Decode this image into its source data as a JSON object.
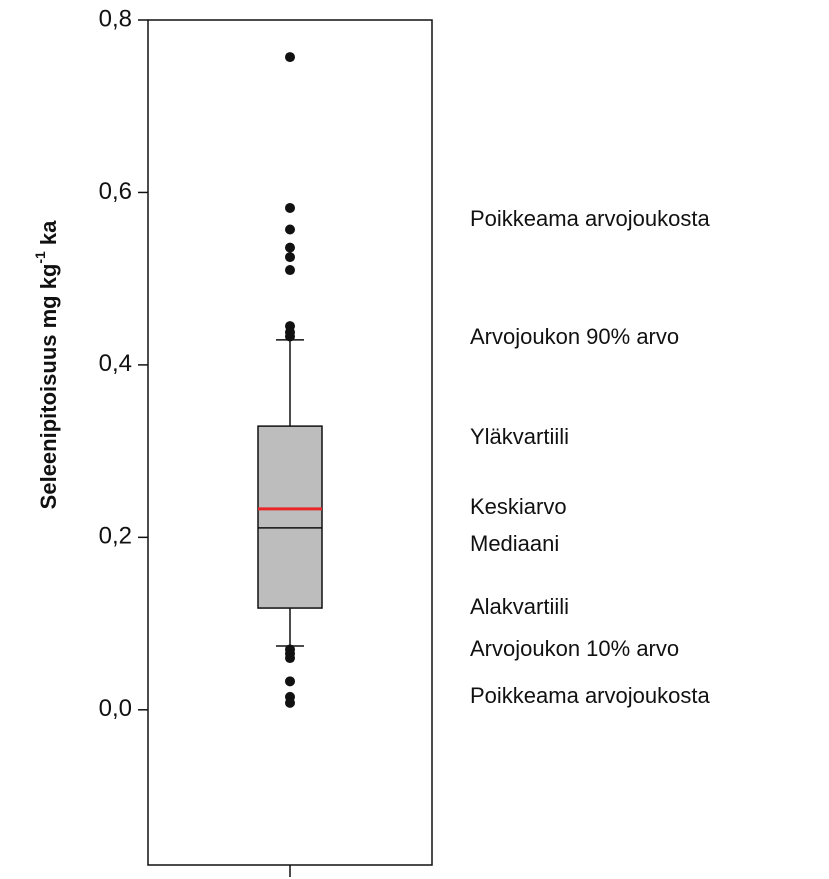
{
  "chart_data": {
    "type": "box",
    "ylabel": {
      "text": "Seleenipitoisuus mg kg",
      "superscript": "-1",
      "suffix": "ka"
    },
    "ylim": [
      -0.18,
      0.8
    ],
    "yticks": [
      {
        "value": 0.0,
        "label": "0,0"
      },
      {
        "value": 0.2,
        "label": "0,2"
      },
      {
        "value": 0.4,
        "label": "0,4"
      },
      {
        "value": 0.6,
        "label": "0,6"
      },
      {
        "value": 0.8,
        "label": "0,8"
      }
    ],
    "box": {
      "q1": 0.118,
      "median": 0.211,
      "q3": 0.329,
      "mean": 0.233,
      "whisker_low": 0.074,
      "whisker_high": 0.429,
      "outliers": [
        0.757,
        0.582,
        0.557,
        0.536,
        0.525,
        0.51,
        0.445,
        0.438,
        0.433,
        0.07,
        0.065,
        0.06,
        0.033,
        0.015,
        0.008
      ],
      "color": "#bdbdbd",
      "mean_color": "#e8262a"
    },
    "annotations": [
      "Poikkeama arvojoukosta",
      "Arvojoukon 90% arvo",
      "Yläkvartiili",
      "Keskiarvo",
      "Mediaani",
      "Alakvartiili",
      "Arvojoukon 10% arvo",
      "Poikkeama arvojoukosta"
    ]
  }
}
